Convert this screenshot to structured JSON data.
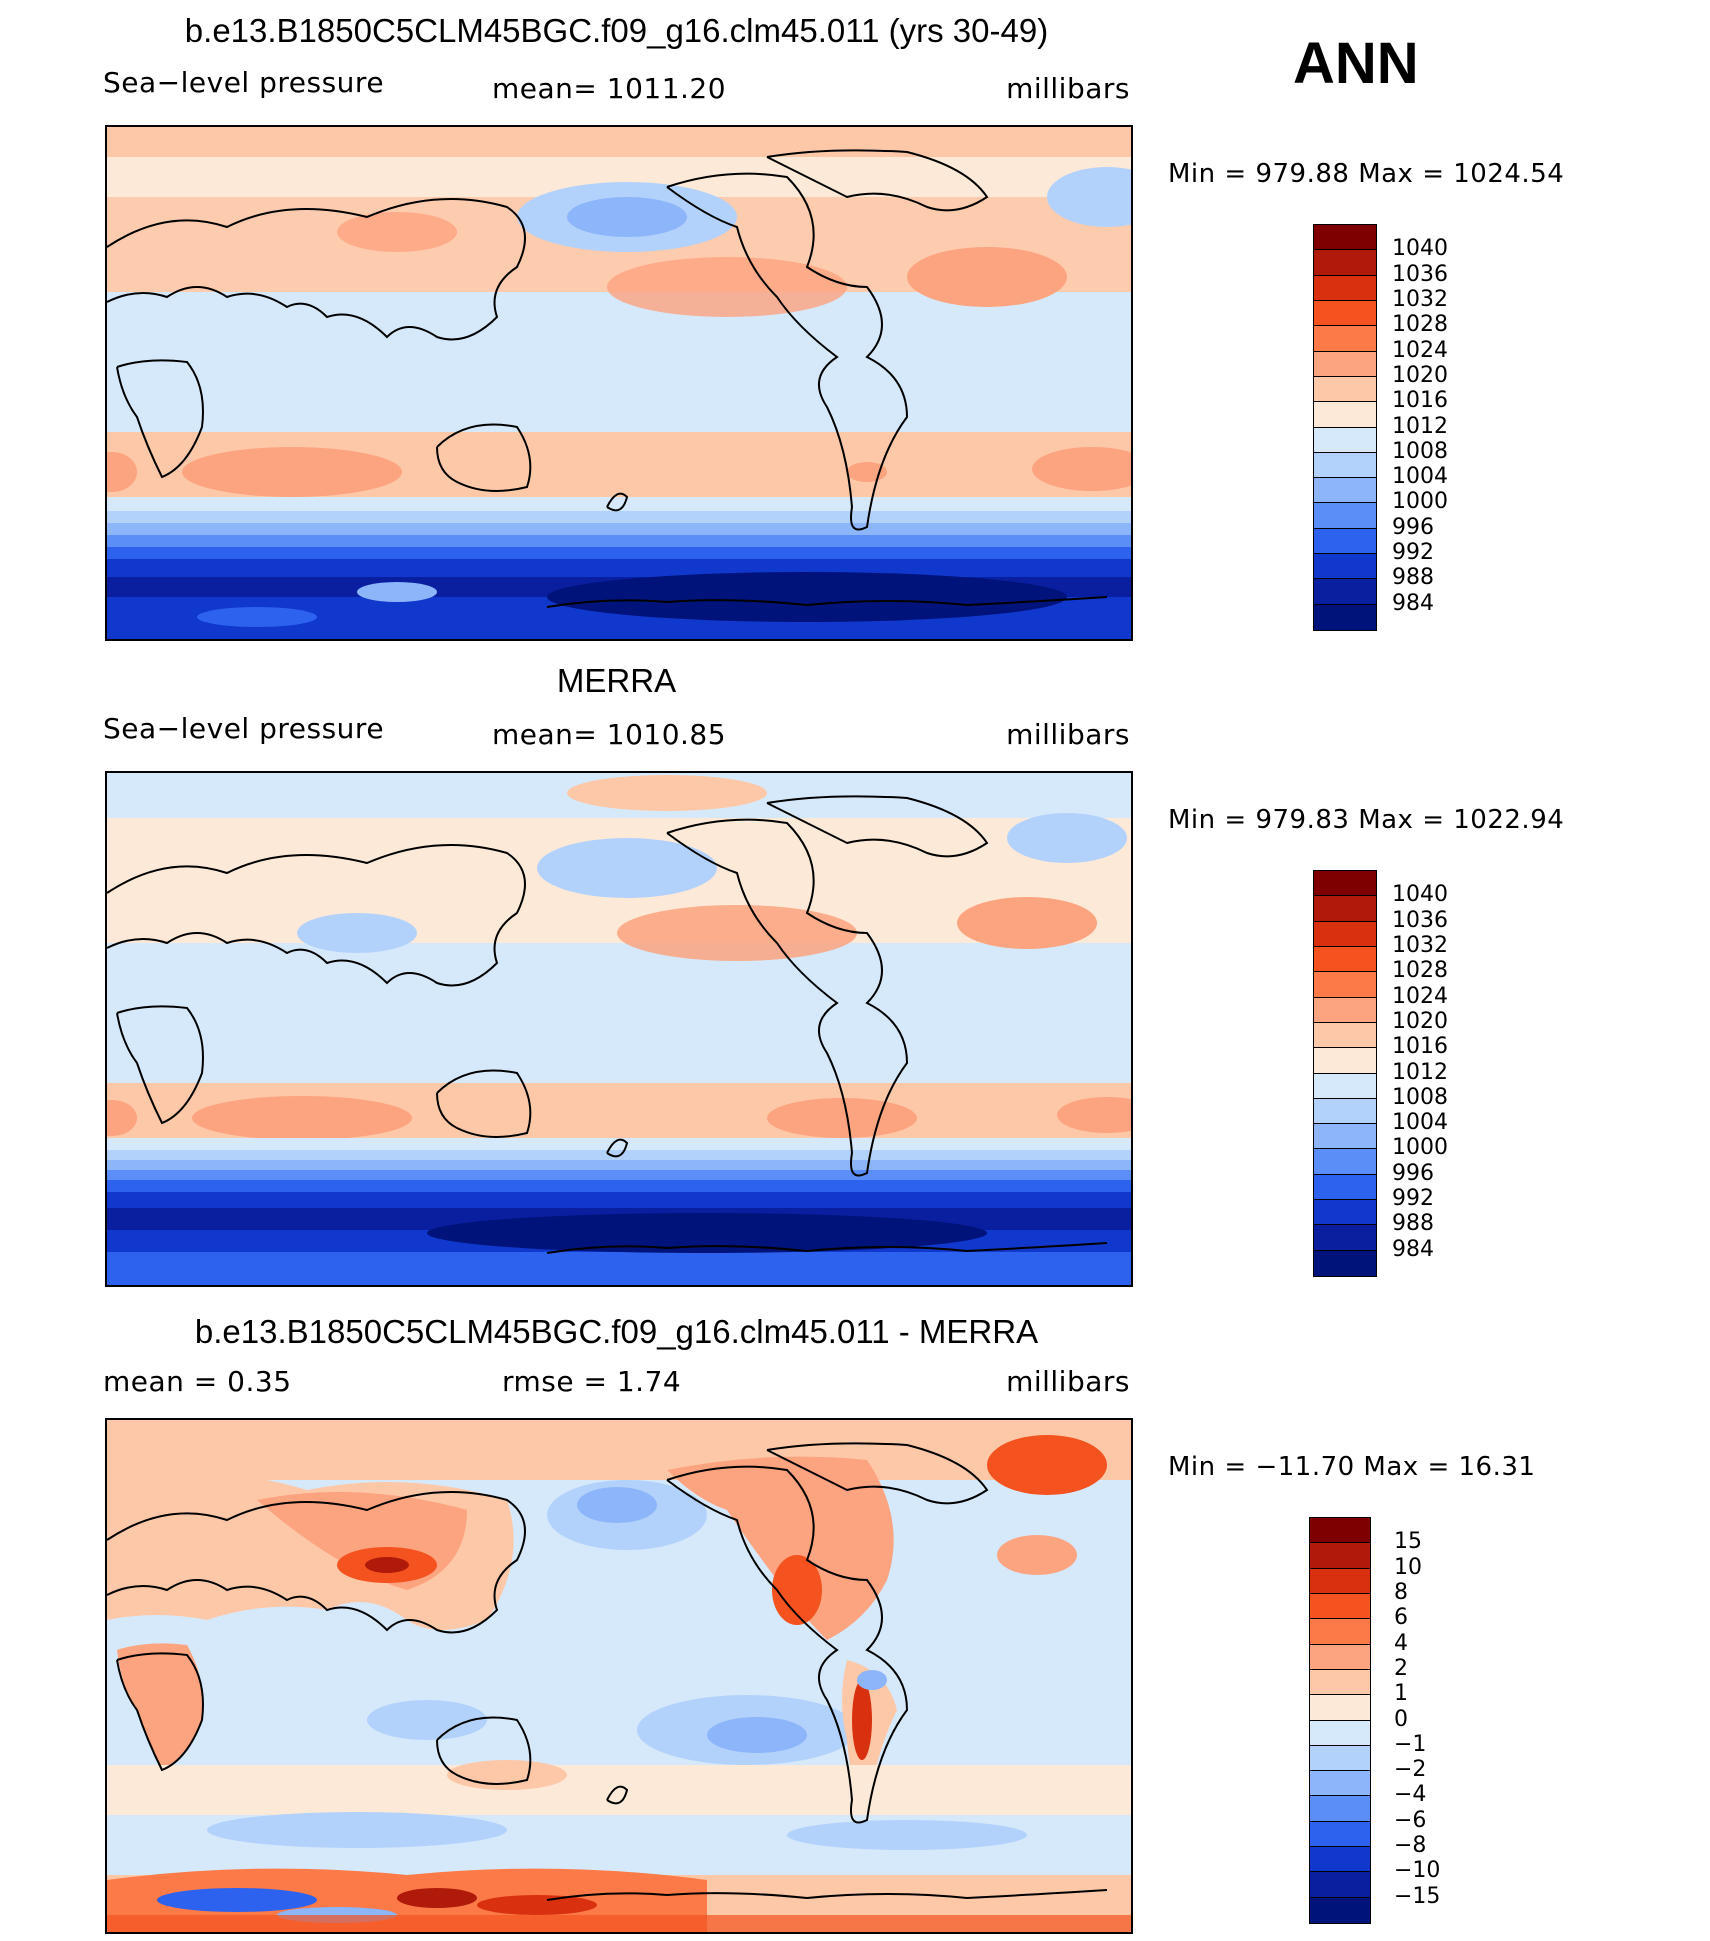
{
  "header": {
    "season": "ANN"
  },
  "panels": [
    {
      "title": "b.e13.B1850C5CLM45BGC.f09_g16.clm45.011 (yrs 30-49)",
      "left_label": "Sea−level pressure",
      "center_label": "mean=  1011.20",
      "right_label": "millibars",
      "minmax": "Min  =  979.88  Max  =  1024.54",
      "map_type": "sea-level-pressure-model"
    },
    {
      "title": "MERRA",
      "left_label": "Sea−level pressure",
      "center_label": "mean=  1010.85",
      "right_label": "millibars",
      "minmax": "Min  =  979.83  Max  =  1022.94",
      "map_type": "sea-level-pressure-obs"
    },
    {
      "title": "b.e13.B1850C5CLM45BGC.f09_g16.clm45.011 - MERRA",
      "left_label": "mean  =      0.35",
      "center_label": "rmse  =      1.74",
      "right_label": "millibars",
      "minmax": "Min  =  −11.70  Max  =    16.31",
      "map_type": "difference"
    }
  ],
  "colorbar_abs": {
    "labels": [
      "1040",
      "1036",
      "1032",
      "1028",
      "1024",
      "1020",
      "1016",
      "1012",
      "1008",
      "1004",
      "1000",
      "996",
      "992",
      "988",
      "984"
    ],
    "colors": [
      "#7f0000",
      "#b01a0a",
      "#d9300f",
      "#f4521f",
      "#fb7a47",
      "#fca37f",
      "#fdc8a8",
      "#fde9d8",
      "#d6e9fb",
      "#b3d2fb",
      "#8cb5fa",
      "#5b8ef6",
      "#2d62ee",
      "#1038cd",
      "#0a1fa0",
      "#00137a"
    ]
  },
  "colorbar_diff": {
    "labels": [
      "15",
      "10",
      "8",
      "6",
      "4",
      "2",
      "1",
      "0",
      "−1",
      "−2",
      "−4",
      "−6",
      "−8",
      "−10",
      "−15"
    ],
    "colors": [
      "#7f0000",
      "#b01a0a",
      "#d9300f",
      "#f4521f",
      "#fb7a47",
      "#fca37f",
      "#fdc8a8",
      "#fde9d8",
      "#d6e9fb",
      "#b3d2fb",
      "#8cb5fa",
      "#5b8ef6",
      "#2d62ee",
      "#1038cd",
      "#0a1fa0",
      "#00137a"
    ]
  }
}
